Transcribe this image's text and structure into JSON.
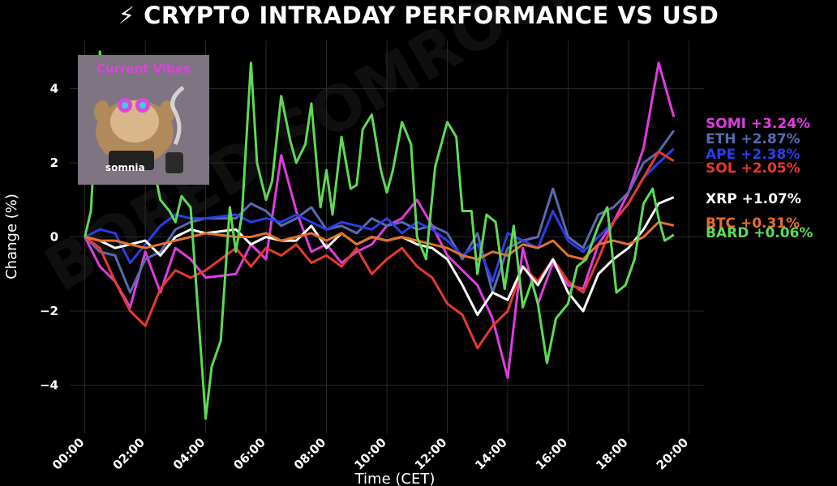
{
  "title": "⚡ CRYPTO INTRADAY PERFORMANCE VS USD",
  "watermark": "BORED SOMROCKS",
  "inset": {
    "caption": "Current Vibes",
    "logo_text": "somnia"
  },
  "chart_data": {
    "type": "line",
    "xlabel": "Time (CET)",
    "ylabel": "Change (%)",
    "xlim": [
      -0.5,
      20.5
    ],
    "ylim": [
      -5.3,
      5.3
    ],
    "x_ticks": [
      "00:00",
      "02:00",
      "04:00",
      "06:00",
      "08:00",
      "10:00",
      "12:00",
      "14:00",
      "16:00",
      "18:00",
      "20:00"
    ],
    "y_ticks": [
      -4,
      -2,
      0,
      2,
      4
    ],
    "grid": true,
    "legend": "labels at line ends (right)",
    "series": [
      {
        "name": "SOMI",
        "end_label": "SOMI +3.24%",
        "color": "#e03ce0",
        "points": [
          [
            0,
            0
          ],
          [
            0.5,
            -0.8
          ],
          [
            1,
            -1.2
          ],
          [
            1.5,
            -1.9
          ],
          [
            2,
            -0.4
          ],
          [
            2.5,
            -1.5
          ],
          [
            3,
            -0.3
          ],
          [
            3.5,
            -0.6
          ],
          [
            4,
            -1.1
          ],
          [
            5,
            -1.0
          ],
          [
            5.5,
            -0.2
          ],
          [
            6,
            -0.6
          ],
          [
            6.5,
            2.2
          ],
          [
            7,
            0.7
          ],
          [
            7.5,
            -0.4
          ],
          [
            8,
            -0.2
          ],
          [
            8.5,
            -0.7
          ],
          [
            9,
            -0.4
          ],
          [
            9.5,
            -0.2
          ],
          [
            10,
            0.3
          ],
          [
            10.5,
            0.5
          ],
          [
            11,
            1.0
          ],
          [
            11.5,
            0.3
          ],
          [
            12,
            -0.5
          ],
          [
            12.5,
            -0.9
          ],
          [
            13,
            -1.3
          ],
          [
            13.5,
            -2.2
          ],
          [
            14,
            -3.8
          ],
          [
            14.5,
            -0.3
          ],
          [
            15,
            -1.8
          ],
          [
            15.5,
            -0.7
          ],
          [
            16,
            -1.3
          ],
          [
            16.5,
            -1.4
          ],
          [
            17,
            -0.2
          ],
          [
            17.5,
            0.4
          ],
          [
            18,
            1.2
          ],
          [
            18.5,
            2.4
          ],
          [
            19,
            4.7
          ],
          [
            19.5,
            3.24
          ]
        ]
      },
      {
        "name": "ETH",
        "end_label": "ETH +2.87%",
        "color": "#5a6ab0",
        "points": [
          [
            0,
            0
          ],
          [
            0.5,
            -0.4
          ],
          [
            1,
            -0.5
          ],
          [
            1.5,
            -1.5
          ],
          [
            2,
            -0.6
          ],
          [
            2.5,
            -0.4
          ],
          [
            3,
            0.2
          ],
          [
            3.5,
            0.4
          ],
          [
            4,
            0.5
          ],
          [
            5,
            0.5
          ],
          [
            5.5,
            0.9
          ],
          [
            6,
            0.7
          ],
          [
            6.5,
            0.3
          ],
          [
            7,
            0.5
          ],
          [
            7.5,
            0.8
          ],
          [
            8,
            0.2
          ],
          [
            8.5,
            0.3
          ],
          [
            9,
            0.1
          ],
          [
            9.5,
            0.5
          ],
          [
            10,
            0.3
          ],
          [
            10.5,
            0.4
          ],
          [
            11,
            0.2
          ],
          [
            11.5,
            0.3
          ],
          [
            12,
            0.1
          ],
          [
            12.5,
            -0.6
          ],
          [
            13,
            0.1
          ],
          [
            13.5,
            -1.5
          ],
          [
            14,
            -0.3
          ],
          [
            14.5,
            -0.1
          ],
          [
            15,
            0.0
          ],
          [
            15.5,
            1.3
          ],
          [
            16,
            0.0
          ],
          [
            16.5,
            -0.3
          ],
          [
            17,
            0.6
          ],
          [
            17.5,
            0.8
          ],
          [
            18,
            1.2
          ],
          [
            18.5,
            2.0
          ],
          [
            19,
            2.3
          ],
          [
            19.5,
            2.87
          ]
        ]
      },
      {
        "name": "APE",
        "end_label": "APE +2.38%",
        "color": "#2a3ee6",
        "points": [
          [
            0,
            0
          ],
          [
            0.5,
            0.2
          ],
          [
            1,
            0.1
          ],
          [
            1.5,
            -0.7
          ],
          [
            2,
            -0.2
          ],
          [
            2.5,
            0.3
          ],
          [
            3,
            0.6
          ],
          [
            3.5,
            0.5
          ],
          [
            4,
            0.5
          ],
          [
            5,
            0.6
          ],
          [
            5.5,
            0.4
          ],
          [
            6,
            0.5
          ],
          [
            6.5,
            0.4
          ],
          [
            7,
            0.6
          ],
          [
            7.5,
            0.4
          ],
          [
            8,
            0.2
          ],
          [
            8.5,
            0.4
          ],
          [
            9,
            0.3
          ],
          [
            9.5,
            0.2
          ],
          [
            10,
            0.5
          ],
          [
            10.5,
            0.1
          ],
          [
            11,
            0.4
          ],
          [
            11.5,
            0.2
          ],
          [
            12,
            -0.1
          ],
          [
            12.5,
            -0.5
          ],
          [
            13,
            -0.2
          ],
          [
            13.5,
            -1.2
          ],
          [
            14,
            0.1
          ],
          [
            14.5,
            -0.1
          ],
          [
            15,
            -0.3
          ],
          [
            15.5,
            0.7
          ],
          [
            16,
            -0.1
          ],
          [
            16.5,
            -0.4
          ],
          [
            17,
            0.0
          ],
          [
            17.5,
            0.4
          ],
          [
            18,
            0.9
          ],
          [
            18.5,
            1.6
          ],
          [
            19,
            2.0
          ],
          [
            19.5,
            2.38
          ]
        ]
      },
      {
        "name": "SOL",
        "end_label": "SOL +2.05%",
        "color": "#e63a30",
        "points": [
          [
            0,
            0
          ],
          [
            0.5,
            -0.3
          ],
          [
            1,
            -1.2
          ],
          [
            1.5,
            -2.0
          ],
          [
            2,
            -2.4
          ],
          [
            2.5,
            -1.4
          ],
          [
            3,
            -0.9
          ],
          [
            3.5,
            -1.1
          ],
          [
            4,
            -0.9
          ],
          [
            5,
            -0.3
          ],
          [
            5.5,
            -0.8
          ],
          [
            6,
            -0.3
          ],
          [
            6.5,
            -0.5
          ],
          [
            7,
            -0.2
          ],
          [
            7.5,
            -0.7
          ],
          [
            8,
            -0.5
          ],
          [
            8.5,
            -0.8
          ],
          [
            9,
            -0.3
          ],
          [
            9.5,
            -1.0
          ],
          [
            10,
            -0.6
          ],
          [
            10.5,
            -0.3
          ],
          [
            11,
            -0.8
          ],
          [
            11.5,
            -1.1
          ],
          [
            12,
            -1.8
          ],
          [
            12.5,
            -2.1
          ],
          [
            13,
            -3.0
          ],
          [
            13.5,
            -2.4
          ],
          [
            14,
            -2.0
          ],
          [
            14.5,
            -0.8
          ],
          [
            15,
            -1.2
          ],
          [
            15.5,
            -0.6
          ],
          [
            16,
            -1.2
          ],
          [
            16.5,
            -1.5
          ],
          [
            17,
            -0.6
          ],
          [
            17.5,
            0.4
          ],
          [
            18,
            0.9
          ],
          [
            18.5,
            1.6
          ],
          [
            19,
            2.3
          ],
          [
            19.5,
            2.05
          ]
        ]
      },
      {
        "name": "XRP",
        "end_label": "XRP +1.07%",
        "color": "#ffffff",
        "points": [
          [
            0,
            0
          ],
          [
            0.5,
            -0.1
          ],
          [
            1,
            -0.3
          ],
          [
            1.5,
            -0.2
          ],
          [
            2,
            -0.1
          ],
          [
            2.5,
            -0.5
          ],
          [
            3,
            0.0
          ],
          [
            3.5,
            0.2
          ],
          [
            4,
            0.1
          ],
          [
            5,
            0.2
          ],
          [
            5.5,
            -0.2
          ],
          [
            6,
            0.0
          ],
          [
            6.5,
            -0.1
          ],
          [
            7,
            -0.1
          ],
          [
            7.5,
            0.3
          ],
          [
            8,
            -0.3
          ],
          [
            8.5,
            0.1
          ],
          [
            9,
            -0.2
          ],
          [
            9.5,
            0.0
          ],
          [
            10,
            -0.1
          ],
          [
            10.5,
            0.0
          ],
          [
            11,
            -0.2
          ],
          [
            11.5,
            -0.3
          ],
          [
            12,
            -0.6
          ],
          [
            12.5,
            -1.3
          ],
          [
            13,
            -2.1
          ],
          [
            13.5,
            -1.5
          ],
          [
            14,
            -1.7
          ],
          [
            14.5,
            -0.8
          ],
          [
            15,
            -1.3
          ],
          [
            15.5,
            -0.6
          ],
          [
            16,
            -1.5
          ],
          [
            16.5,
            -2.0
          ],
          [
            17,
            -1.0
          ],
          [
            17.5,
            -0.6
          ],
          [
            18,
            -0.3
          ],
          [
            18.5,
            0.2
          ],
          [
            19,
            0.9
          ],
          [
            19.5,
            1.07
          ]
        ]
      },
      {
        "name": "BTC",
        "end_label": "BTC +0.31%",
        "color": "#e6702a",
        "points": [
          [
            0,
            0
          ],
          [
            0.5,
            -0.1
          ],
          [
            1,
            -0.1
          ],
          [
            1.5,
            -0.2
          ],
          [
            2,
            -0.3
          ],
          [
            2.5,
            -0.2
          ],
          [
            3,
            -0.1
          ],
          [
            3.5,
            0.0
          ],
          [
            4,
            0.1
          ],
          [
            5,
            0.0
          ],
          [
            5.5,
            0.0
          ],
          [
            6,
            0.1
          ],
          [
            6.5,
            -0.1
          ],
          [
            7,
            0.0
          ],
          [
            7.5,
            0.1
          ],
          [
            8,
            -0.1
          ],
          [
            8.5,
            0.1
          ],
          [
            9,
            -0.2
          ],
          [
            9.5,
            0.0
          ],
          [
            10,
            -0.1
          ],
          [
            10.5,
            0.0
          ],
          [
            11,
            -0.1
          ],
          [
            11.5,
            -0.2
          ],
          [
            12,
            -0.3
          ],
          [
            12.5,
            -0.5
          ],
          [
            13,
            -0.6
          ],
          [
            13.5,
            -0.4
          ],
          [
            14,
            -0.5
          ],
          [
            14.5,
            -0.2
          ],
          [
            15,
            -0.3
          ],
          [
            15.5,
            -0.1
          ],
          [
            16,
            -0.5
          ],
          [
            16.5,
            -0.6
          ],
          [
            17,
            -0.2
          ],
          [
            17.5,
            -0.1
          ],
          [
            18,
            -0.2
          ],
          [
            18.5,
            0.0
          ],
          [
            19,
            0.4
          ],
          [
            19.5,
            0.31
          ]
        ]
      },
      {
        "name": "BARD",
        "end_label": "BARD +0.06%",
        "color": "#5fd957",
        "points": [
          [
            0,
            0
          ],
          [
            0.2,
            0.7
          ],
          [
            0.5,
            5.0
          ],
          [
            0.8,
            1.8
          ],
          [
            1,
            3.2
          ],
          [
            1.2,
            3.3
          ],
          [
            1.5,
            1.6
          ],
          [
            1.7,
            4.3
          ],
          [
            2,
            1.7
          ],
          [
            2.2,
            2.2
          ],
          [
            2.5,
            1.0
          ],
          [
            2.8,
            0.7
          ],
          [
            3,
            0.4
          ],
          [
            3.2,
            1.1
          ],
          [
            3.5,
            0.8
          ],
          [
            4,
            -4.9
          ],
          [
            4.2,
            -3.5
          ],
          [
            4.5,
            -2.8
          ],
          [
            4.8,
            0.8
          ],
          [
            5,
            -0.4
          ],
          [
            5.2,
            0.6
          ],
          [
            5.5,
            4.7
          ],
          [
            5.7,
            2.0
          ],
          [
            6,
            1.0
          ],
          [
            6.2,
            1.5
          ],
          [
            6.5,
            3.8
          ],
          [
            6.8,
            2.6
          ],
          [
            7,
            2.0
          ],
          [
            7.3,
            2.5
          ],
          [
            7.5,
            3.6
          ],
          [
            7.8,
            0.8
          ],
          [
            8,
            1.8
          ],
          [
            8.2,
            0.6
          ],
          [
            8.5,
            2.7
          ],
          [
            8.8,
            1.3
          ],
          [
            9,
            1.4
          ],
          [
            9.2,
            2.9
          ],
          [
            9.5,
            3.3
          ],
          [
            9.8,
            1.8
          ],
          [
            10,
            1.2
          ],
          [
            10.2,
            1.8
          ],
          [
            10.5,
            3.1
          ],
          [
            10.8,
            2.5
          ],
          [
            11,
            0.0
          ],
          [
            11.3,
            -0.6
          ],
          [
            11.6,
            1.9
          ],
          [
            12,
            3.1
          ],
          [
            12.3,
            2.7
          ],
          [
            12.5,
            0.7
          ],
          [
            12.8,
            0.7
          ],
          [
            13,
            -1.0
          ],
          [
            13.3,
            0.6
          ],
          [
            13.6,
            0.4
          ],
          [
            13.9,
            -1.4
          ],
          [
            14.2,
            0.3
          ],
          [
            14.5,
            -1.9
          ],
          [
            14.8,
            -1.2
          ],
          [
            15,
            -1.8
          ],
          [
            15.3,
            -3.4
          ],
          [
            15.6,
            -2.2
          ],
          [
            16,
            -1.8
          ],
          [
            16.3,
            -0.8
          ],
          [
            16.6,
            -0.6
          ],
          [
            17,
            0.3
          ],
          [
            17.3,
            0.8
          ],
          [
            17.6,
            -1.5
          ],
          [
            17.9,
            -1.3
          ],
          [
            18.2,
            -0.6
          ],
          [
            18.5,
            0.9
          ],
          [
            18.8,
            1.3
          ],
          [
            19,
            0.5
          ],
          [
            19.2,
            -0.1
          ],
          [
            19.5,
            0.06
          ]
        ]
      }
    ]
  }
}
